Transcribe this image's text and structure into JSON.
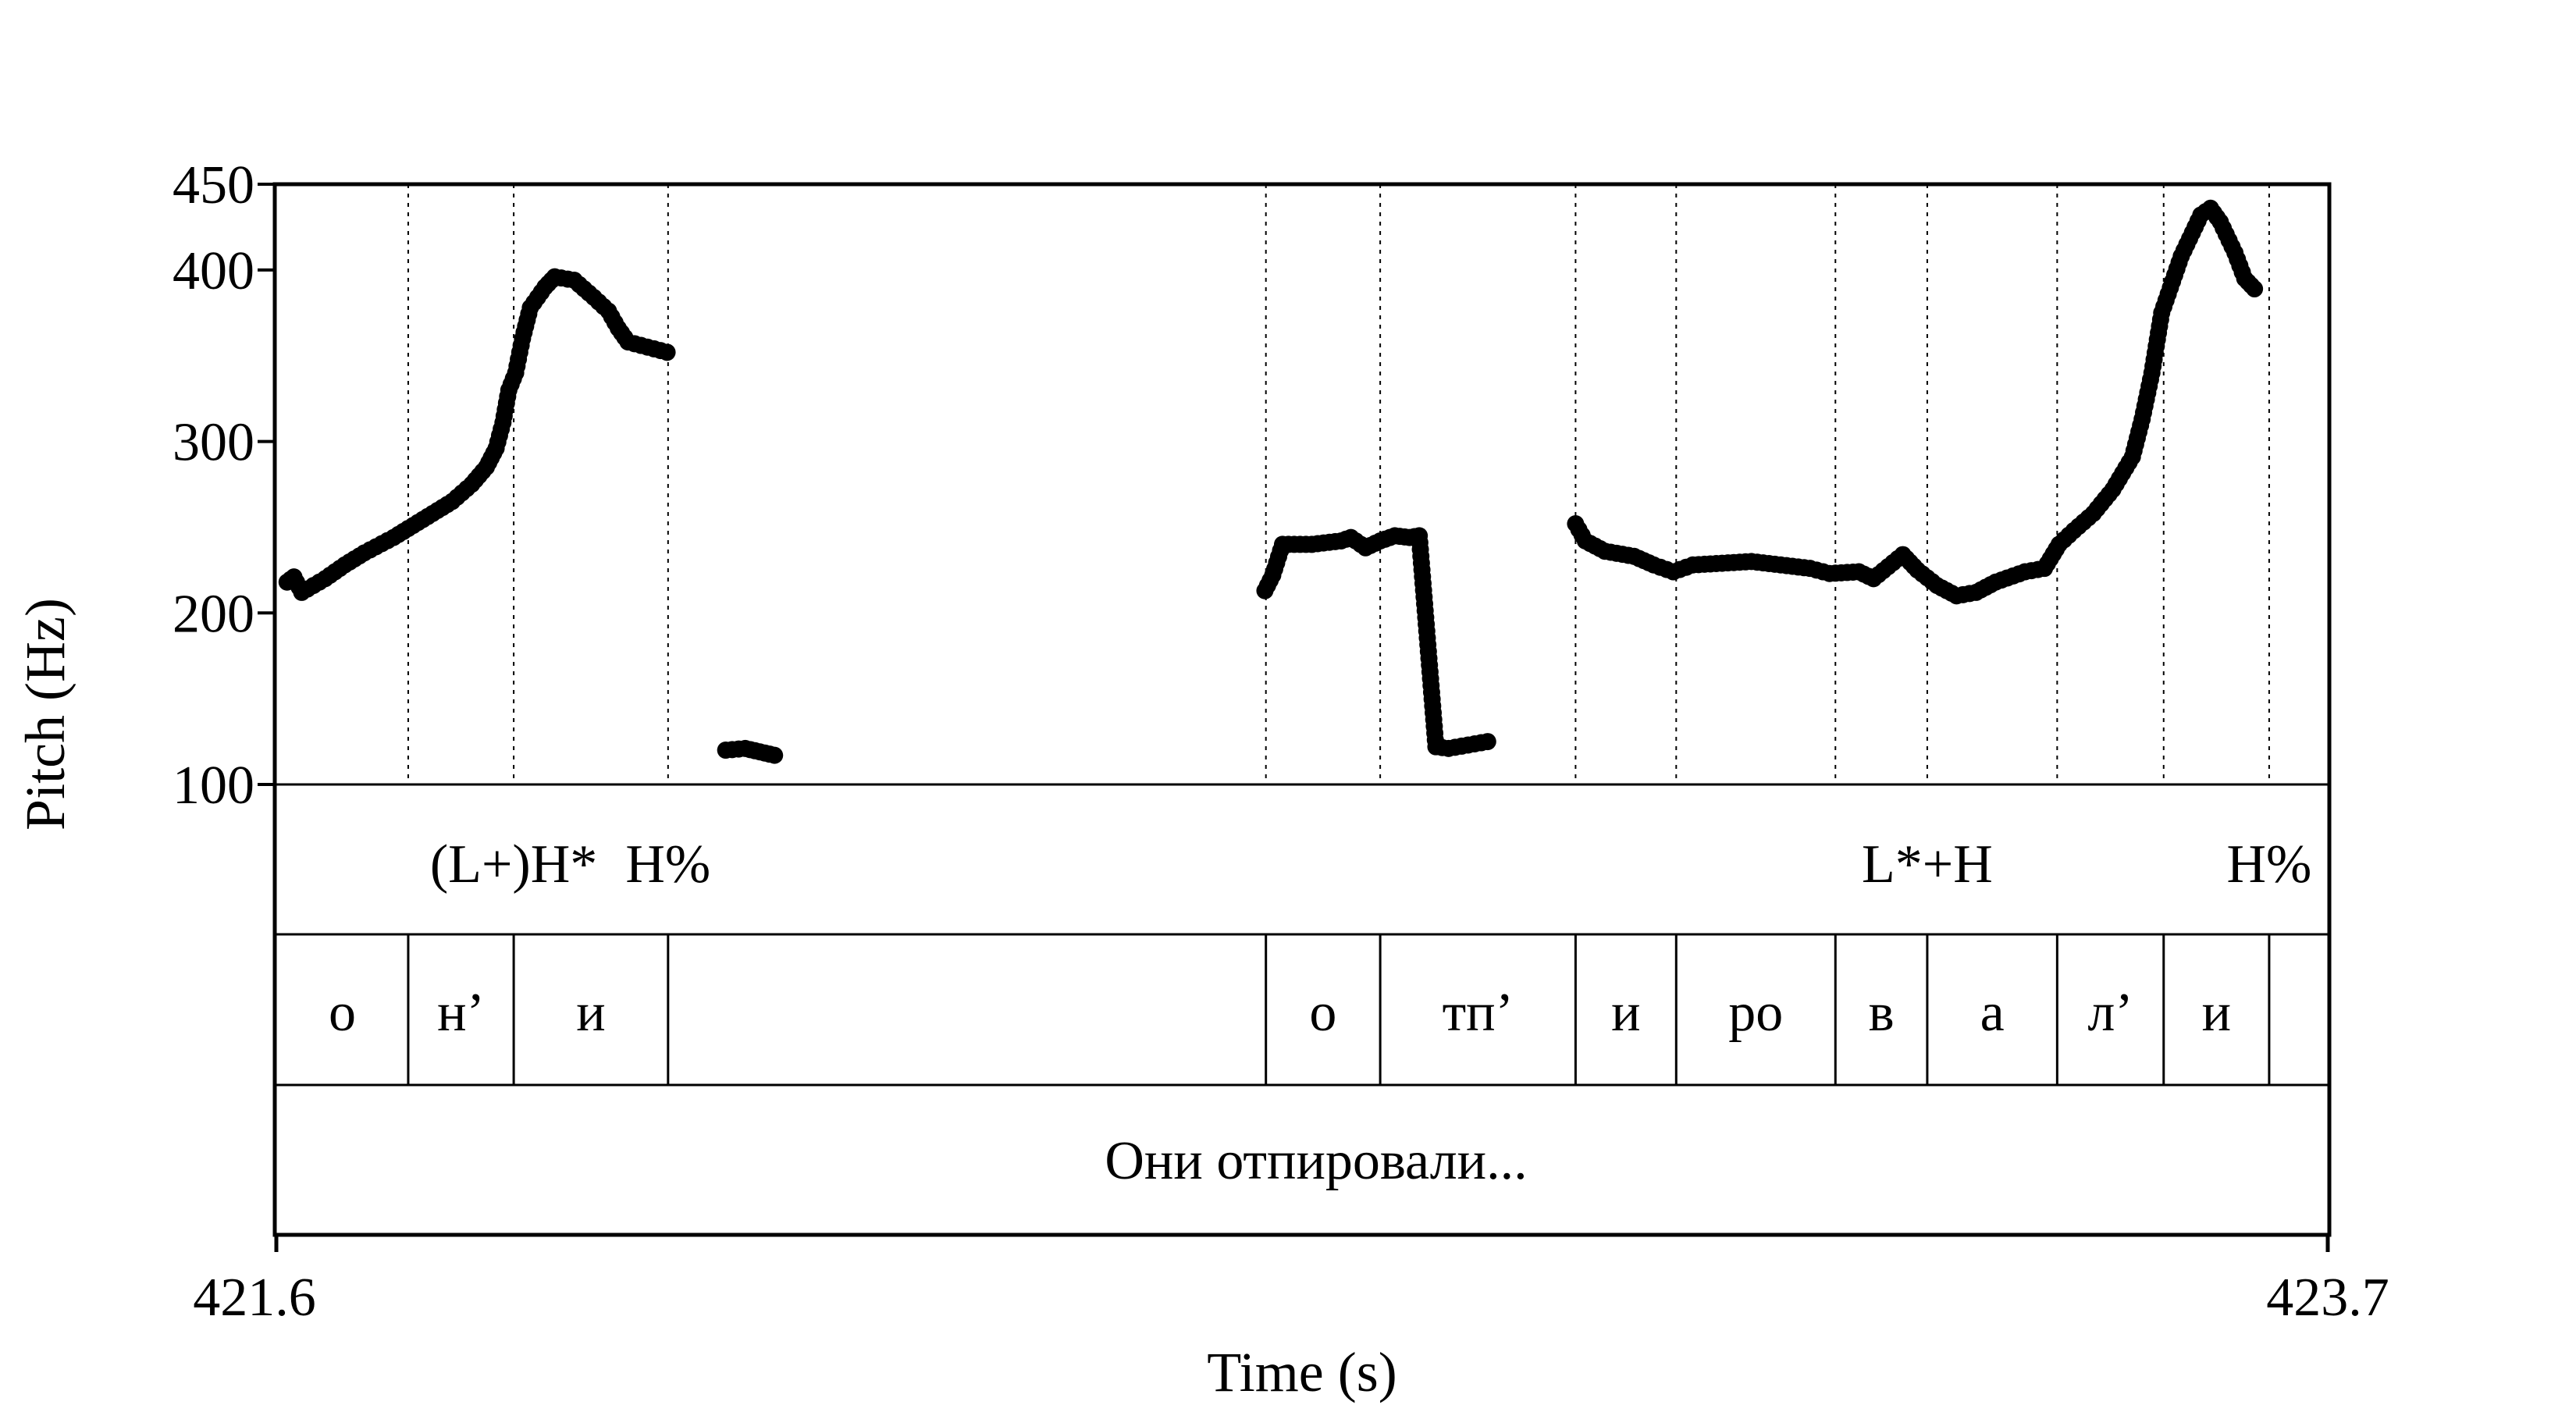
{
  "chart_data": {
    "type": "line",
    "ylabel": "Pitch (Hz)",
    "xlabel": "Time (s)",
    "ylim": [
      100,
      450
    ],
    "y_ticks": [
      100,
      200,
      300,
      400,
      450
    ],
    "x_range": [
      421.6,
      423.7
    ],
    "x_ticks": [
      "421.6",
      "423.7"
    ],
    "series": [
      {
        "points": [
          [
            421.611,
            218
          ],
          [
            421.618,
            221
          ],
          [
            421.626,
            212
          ],
          [
            421.65,
            220
          ],
          [
            421.67,
            228
          ],
          [
            421.69,
            235
          ],
          [
            421.72,
            244
          ],
          [
            421.74,
            251
          ],
          [
            421.76,
            258
          ],
          [
            421.78,
            265
          ],
          [
            421.8,
            275
          ],
          [
            421.815,
            285
          ],
          [
            421.825,
            296
          ],
          [
            421.832,
            311
          ],
          [
            421.838,
            330
          ],
          [
            421.845,
            340
          ],
          [
            421.852,
            360
          ],
          [
            421.86,
            378
          ],
          [
            421.875,
            390
          ],
          [
            421.885,
            396
          ],
          [
            421.905,
            394
          ],
          [
            421.925,
            384
          ],
          [
            421.94,
            376
          ],
          [
            421.95,
            366
          ],
          [
            421.96,
            358
          ],
          [
            421.98,
            355
          ],
          [
            422.0,
            352
          ],
          [
            422.06,
            120
          ],
          [
            422.08,
            121
          ],
          [
            422.095,
            119
          ],
          [
            422.11,
            117
          ],
          [
            422.612,
            213
          ],
          [
            422.62,
            222
          ],
          [
            422.63,
            240
          ],
          [
            422.66,
            240
          ],
          [
            422.69,
            242
          ],
          [
            422.7,
            244
          ],
          [
            422.715,
            238
          ],
          [
            422.73,
            242
          ],
          [
            422.745,
            245
          ],
          [
            422.76,
            244
          ],
          [
            422.77,
            245
          ],
          [
            422.787,
            122
          ],
          [
            422.8,
            121
          ],
          [
            422.82,
            123
          ],
          [
            422.84,
            125
          ],
          [
            422.93,
            252
          ],
          [
            422.94,
            242
          ],
          [
            422.96,
            236
          ],
          [
            422.99,
            233
          ],
          [
            423.01,
            228
          ],
          [
            423.03,
            224
          ],
          [
            423.05,
            228
          ],
          [
            423.08,
            229
          ],
          [
            423.11,
            230
          ],
          [
            423.14,
            228
          ],
          [
            423.17,
            226
          ],
          [
            423.19,
            223
          ],
          [
            423.22,
            224
          ],
          [
            423.235,
            220
          ],
          [
            423.25,
            227
          ],
          [
            423.265,
            234
          ],
          [
            423.28,
            225
          ],
          [
            423.3,
            216
          ],
          [
            423.32,
            210
          ],
          [
            423.34,
            212
          ],
          [
            423.36,
            218
          ],
          [
            423.39,
            224
          ],
          [
            423.41,
            226
          ],
          [
            423.425,
            240
          ],
          [
            423.44,
            248
          ],
          [
            423.46,
            258
          ],
          [
            423.48,
            272
          ],
          [
            423.5,
            291
          ],
          [
            423.51,
            313
          ],
          [
            423.52,
            340
          ],
          [
            423.53,
            375
          ],
          [
            423.55,
            408
          ],
          [
            423.57,
            432
          ],
          [
            423.58,
            436
          ],
          [
            423.59,
            428
          ],
          [
            423.605,
            410
          ],
          [
            423.615,
            395
          ],
          [
            423.625,
            389
          ]
        ]
      }
    ],
    "boundaries": [
      421.735,
      421.843,
      422.001,
      422.613,
      422.73,
      422.93,
      423.033,
      423.196,
      423.29,
      423.423,
      423.532,
      423.64
    ]
  },
  "tiers": {
    "tones": [
      {
        "text": "(L+)H*",
        "t": 421.843
      },
      {
        "text": "H%",
        "t": 422.001
      },
      {
        "text": "L*+H",
        "t": 423.29
      },
      {
        "text": "H%",
        "t": 423.64
      }
    ],
    "segments": [
      {
        "text": "о",
        "start": 421.6,
        "end": 421.735
      },
      {
        "text": "н’",
        "start": 421.735,
        "end": 421.843
      },
      {
        "text": "и",
        "start": 421.843,
        "end": 422.001
      },
      {
        "text": "",
        "start": 422.001,
        "end": 422.613
      },
      {
        "text": "о",
        "start": 422.613,
        "end": 422.73
      },
      {
        "text": "тп’",
        "start": 422.73,
        "end": 422.93
      },
      {
        "text": "и",
        "start": 422.93,
        "end": 423.033
      },
      {
        "text": "ро",
        "start": 423.033,
        "end": 423.196
      },
      {
        "text": "в",
        "start": 423.196,
        "end": 423.29
      },
      {
        "text": "а",
        "start": 423.29,
        "end": 423.423
      },
      {
        "text": "л’",
        "start": 423.423,
        "end": 423.532
      },
      {
        "text": "и",
        "start": 423.532,
        "end": 423.64
      },
      {
        "text": "",
        "start": 423.64,
        "end": 423.7
      }
    ],
    "phrase": "Они отпировали..."
  }
}
